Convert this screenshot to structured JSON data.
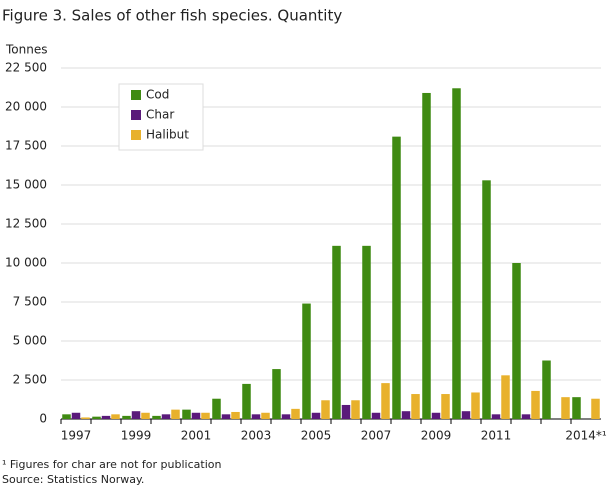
{
  "chart_data": {
    "type": "bar",
    "title": "Figure 3. Sales of other fish species. Quantity",
    "y_label": "Tonnes",
    "categories": [
      "1997",
      null,
      "1999",
      null,
      "2001",
      null,
      "2003",
      null,
      "2005",
      null,
      "2007",
      null,
      "2009",
      null,
      "2011",
      null,
      null,
      "2014*¹"
    ],
    "series": [
      {
        "name": "Cod",
        "color": "#3f8a12",
        "values": [
          300,
          150,
          200,
          200,
          600,
          1300,
          2250,
          3200,
          7400,
          11100,
          11100,
          18100,
          20900,
          21200,
          15300,
          10000,
          3750,
          1400
        ]
      },
      {
        "name": "Char",
        "color": "#5a1a7a",
        "values": [
          400,
          200,
          500,
          300,
          400,
          300,
          300,
          300,
          400,
          900,
          400,
          500,
          400,
          500,
          300,
          300,
          null,
          null
        ]
      },
      {
        "name": "Halibut",
        "color": "#e8b12c",
        "values": [
          100,
          300,
          400,
          600,
          400,
          450,
          400,
          650,
          1200,
          1200,
          2300,
          1600,
          1600,
          1700,
          2800,
          1800,
          1400,
          1300
        ]
      }
    ],
    "ylim": [
      0,
      22500
    ],
    "yticks": [
      0,
      {
        "value": 2500,
        "label": "2 500"
      },
      {
        "value": 5000,
        "label": "5 000"
      },
      {
        "value": 7500,
        "label": "7 500"
      },
      {
        "value": 10000,
        "label": "10 000"
      },
      {
        "value": 12500,
        "label": "12 500"
      },
      {
        "value": 15000,
        "label": "15 000"
      },
      {
        "value": 17500,
        "label": "17 500"
      },
      {
        "value": 20000,
        "label": "20 000"
      },
      {
        "value": 22500,
        "label": "22 500"
      }
    ],
    "grid": true,
    "legend": "top-left",
    "footnotes": [
      "¹ Figures for char are not for publication",
      "Source: Statistics Norway."
    ]
  }
}
